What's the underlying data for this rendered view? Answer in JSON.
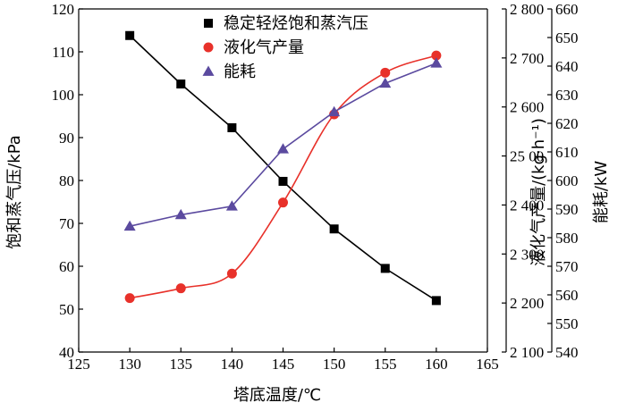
{
  "chart_data": {
    "type": "line",
    "xlabel": "塔底温度/℃",
    "x_ticks": [
      "125",
      "130",
      "135",
      "140",
      "145",
      "150",
      "155",
      "160",
      "165"
    ],
    "xlim": [
      125,
      165
    ],
    "y_axes": [
      {
        "id": "left",
        "label": "饱和蒸气压/kPa",
        "lim": [
          40,
          120
        ],
        "ticks": [
          "40",
          "50",
          "60",
          "70",
          "80",
          "90",
          "100",
          "110",
          "120"
        ]
      },
      {
        "id": "mid",
        "label": "液化气产量/(kg·h⁻¹)",
        "lim": [
          2100,
          2800
        ],
        "ticks": [
          "2 100",
          "2 200",
          "2 300",
          "2 400",
          "25 00",
          "2 600",
          "2 700",
          "2 800"
        ]
      },
      {
        "id": "right",
        "label": "能耗/kW",
        "lim": [
          540,
          660
        ],
        "ticks": [
          "540",
          "550",
          "560",
          "570",
          "580",
          "590",
          "600",
          "610",
          "620",
          "630",
          "640",
          "650",
          "660"
        ]
      }
    ],
    "series": [
      {
        "name": "稳定轻烃饱和蒸汽压",
        "axis": "left",
        "marker": "square",
        "color": "#000000",
        "smooth": false,
        "x": [
          130,
          135,
          140,
          145,
          150,
          155,
          160
        ],
        "y": [
          113.8,
          102.5,
          92.3,
          79.8,
          68.7,
          59.5,
          52.0
        ]
      },
      {
        "name": "液化气产量",
        "axis": "mid",
        "marker": "circle",
        "color": "#e8312a",
        "smooth": true,
        "x": [
          130,
          135,
          140,
          145,
          150,
          155,
          160
        ],
        "y": [
          2210,
          2230,
          2260,
          2405,
          2585,
          2670,
          2705
        ]
      },
      {
        "name": "能耗",
        "axis": "right",
        "marker": "triangle",
        "color": "#5b4a9f",
        "smooth": false,
        "x": [
          130,
          135,
          140,
          145,
          150,
          155,
          160
        ],
        "y": [
          584,
          588,
          591,
          611,
          624,
          634,
          641
        ]
      }
    ],
    "legend_position": "top-right"
  }
}
